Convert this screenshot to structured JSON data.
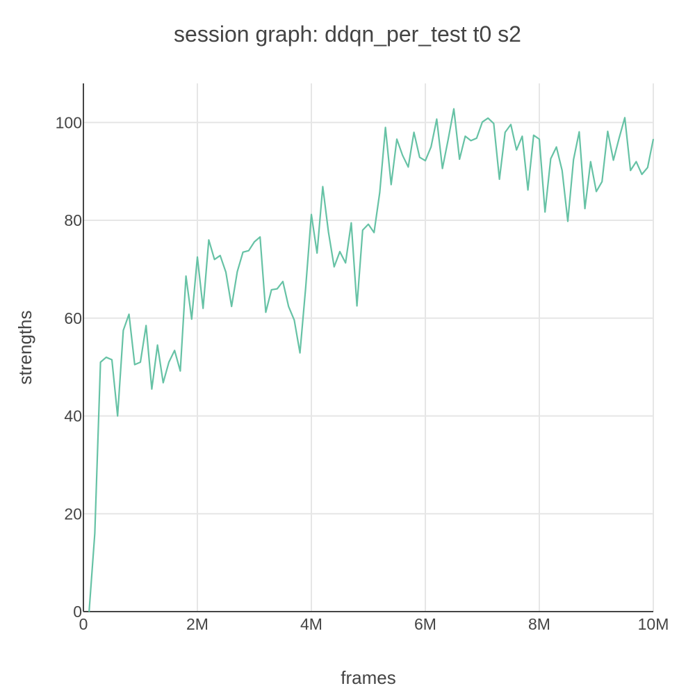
{
  "chart_data": {
    "type": "line",
    "title": "session graph: ddqn_per_test t0 s2",
    "xlabel": "frames",
    "ylabel": "strengths",
    "xlim": [
      0,
      10000000
    ],
    "ylim": [
      0,
      108
    ],
    "grid": true,
    "colors": {
      "line": "#66c2a5",
      "grid": "#e6e6e6",
      "axis": "#444444",
      "text": "#444444"
    },
    "x_ticks": [
      {
        "value": 0,
        "label": "0"
      },
      {
        "value": 2000000,
        "label": "2M"
      },
      {
        "value": 4000000,
        "label": "4M"
      },
      {
        "value": 6000000,
        "label": "6M"
      },
      {
        "value": 8000000,
        "label": "8M"
      },
      {
        "value": 10000000,
        "label": "10M"
      }
    ],
    "y_ticks": [
      {
        "value": 0,
        "label": "0"
      },
      {
        "value": 20,
        "label": "20"
      },
      {
        "value": 40,
        "label": "40"
      },
      {
        "value": 60,
        "label": "60"
      },
      {
        "value": 80,
        "label": "80"
      },
      {
        "value": 100,
        "label": "100"
      }
    ],
    "series": [
      {
        "x": [
          100000,
          200000,
          300000,
          400000,
          500000,
          600000,
          700000,
          800000,
          900000,
          1000000,
          1100000,
          1200000,
          1300000,
          1400000,
          1500000,
          1600000,
          1700000,
          1800000,
          1900000,
          2000000,
          2100000,
          2200000,
          2300000,
          2400000,
          2500000,
          2600000,
          2700000,
          2800000,
          2900000,
          3000000,
          3100000,
          3200000,
          3300000,
          3400000,
          3500000,
          3600000,
          3700000,
          3800000,
          3900000,
          4000000,
          4100000,
          4200000,
          4300000,
          4400000,
          4500000,
          4600000,
          4700000,
          4800000,
          4900000,
          5000000,
          5100000,
          5200000,
          5300000,
          5400000,
          5500000,
          5600000,
          5700000,
          5800000,
          5900000,
          6000000,
          6100000,
          6200000,
          6300000,
          6400000,
          6500000,
          6600000,
          6700000,
          6800000,
          6900000,
          7000000,
          7100000,
          7200000,
          7300000,
          7400000,
          7500000,
          7600000,
          7700000,
          7800000,
          7900000,
          8000000,
          8100000,
          8200000,
          8300000,
          8400000,
          8500000,
          8600000,
          8700000,
          8800000,
          8900000,
          9000000,
          9100000,
          9200000,
          9300000,
          9400000,
          9500000,
          9600000,
          9700000,
          9800000,
          9900000,
          10000000
        ],
        "y": [
          0,
          16,
          51,
          52,
          51.5,
          40,
          57.5,
          60.8,
          50.5,
          51,
          58.5,
          45.5,
          54.5,
          46.8,
          51,
          53.4,
          49.2,
          68.6,
          59.8,
          72.5,
          62,
          76,
          72,
          72.8,
          69.4,
          62.4,
          69.5,
          73.5,
          73.8,
          75.6,
          76.6,
          61.2,
          65.8,
          66,
          67.5,
          62.4,
          59.6,
          52.9,
          66.2,
          81.2,
          73.3,
          86.9,
          77.6,
          70.5,
          73.6,
          71.3,
          79.5,
          62.5,
          78,
          79.2,
          77.5,
          85.7,
          99,
          87.3,
          96.6,
          93.3,
          90.9,
          98,
          92.9,
          92.2,
          95,
          100.7,
          90.6,
          96.5,
          102.8,
          92.5,
          97.2,
          96.3,
          96.8,
          100.1,
          100.9,
          99.8,
          88.4,
          98,
          99.6,
          94.4,
          97.2,
          86.2,
          97.4,
          96.6,
          81.7,
          92.6,
          95,
          90.2,
          79.8,
          92.4,
          98.1,
          82.4,
          92,
          85.9,
          87.9,
          98.2,
          92.3,
          96.8,
          101,
          90.2,
          92,
          89.4,
          90.8,
          96.6
        ]
      }
    ]
  }
}
